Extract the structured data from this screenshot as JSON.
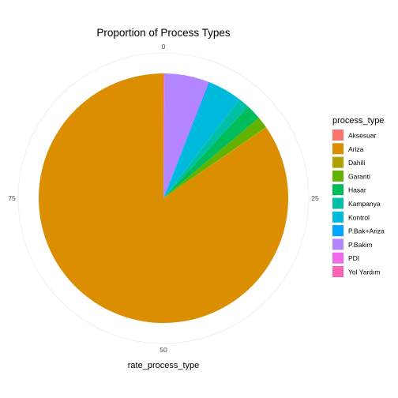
{
  "chart_data": {
    "type": "pie",
    "title": "Proportion of Process Types",
    "xlabel": "rate_process_type",
    "ylabel": "",
    "theta_ticks": [
      "0",
      "25",
      "50",
      "75"
    ],
    "theta_tick_values": [
      0,
      25,
      50,
      75
    ],
    "theta_range": [
      0,
      100
    ],
    "legend": {
      "title": "process_type",
      "placement": "right"
    },
    "slices_order": "clockwise from top, reverse of legend order",
    "categories": [
      "Aksesuar",
      "Ariza",
      "Dahili",
      "Garanti",
      "Hasar",
      "Kampanya",
      "Kontrol",
      "P.Bak+Ariza",
      "P.Bakim",
      "PDI",
      "Yol Yardım"
    ],
    "values": [
      0.0,
      84.6,
      0.05,
      1.5,
      2.0,
      1.4,
      4.3,
      0.2,
      5.8,
      0.05,
      0.1
    ],
    "colors": [
      "#F8766D",
      "#DB8E00",
      "#AEA200",
      "#64B200",
      "#00BD5C",
      "#00C1A7",
      "#00BADE",
      "#00A6FF",
      "#B385FF",
      "#EF67EB",
      "#FF63B6"
    ],
    "grid": true
  }
}
